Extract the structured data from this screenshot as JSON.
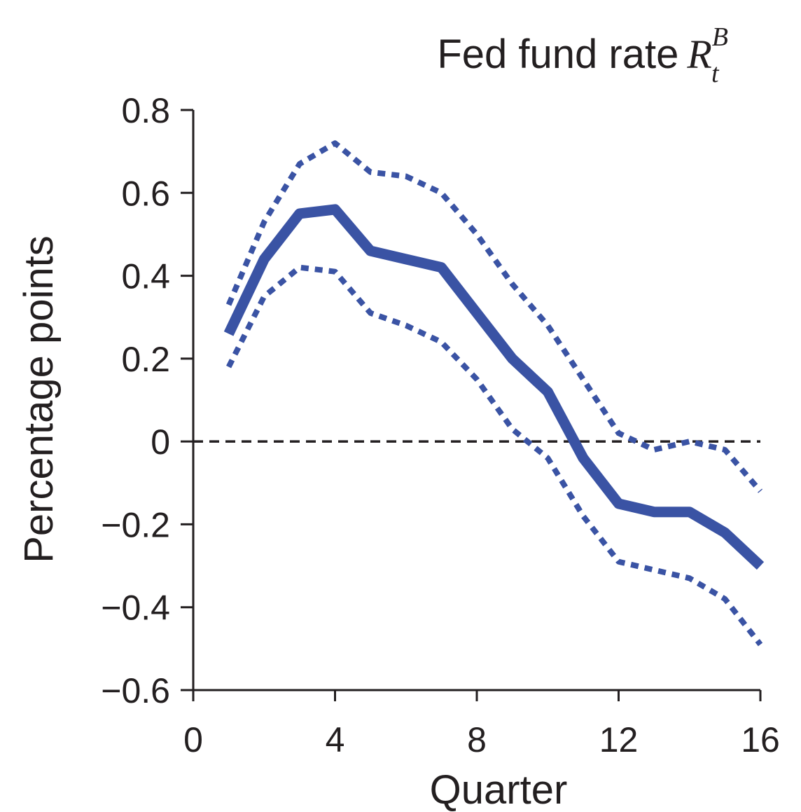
{
  "chart_data": {
    "type": "line",
    "title": "Fed fund rate",
    "title_math": {
      "symbol": "R",
      "superscript": "B",
      "subscript": "t"
    },
    "xlabel": "Quarter",
    "ylabel": "Percentage points",
    "xlim": [
      0,
      16
    ],
    "ylim": [
      -0.6,
      0.8
    ],
    "x_ticks": [
      0,
      4,
      8,
      12,
      16
    ],
    "x_tick_labels": [
      "0",
      "4",
      "8",
      "12",
      "16"
    ],
    "y_ticks": [
      0.8,
      0.6,
      0.4,
      0.2,
      0,
      -0.2,
      -0.4,
      -0.6
    ],
    "y_tick_labels": [
      "0.8",
      "0.6",
      "0.4",
      "0.2",
      "0",
      "−0.2",
      "−0.4",
      "−0.6"
    ],
    "grid": false,
    "reference_line": {
      "y": 0,
      "style": "dashed",
      "color": "#231f20"
    },
    "x": [
      1,
      2,
      3,
      4,
      5,
      6,
      7,
      8,
      9,
      10,
      11,
      12,
      13,
      14,
      15,
      16
    ],
    "series": [
      {
        "role": "estimate",
        "style": "solid",
        "color": "#3a53a4",
        "values": [
          0.26,
          0.44,
          0.55,
          0.56,
          0.46,
          0.44,
          0.42,
          0.31,
          0.2,
          0.12,
          -0.04,
          -0.15,
          -0.17,
          -0.17,
          -0.22,
          -0.3
        ]
      },
      {
        "role": "upper-band",
        "style": "dotted",
        "color": "#3a53a4",
        "values": [
          0.33,
          0.53,
          0.67,
          0.72,
          0.65,
          0.64,
          0.6,
          0.5,
          0.38,
          0.28,
          0.15,
          0.02,
          -0.02,
          0.0,
          -0.02,
          -0.12
        ]
      },
      {
        "role": "lower-band",
        "style": "dotted",
        "color": "#3a53a4",
        "values": [
          0.18,
          0.35,
          0.42,
          0.41,
          0.31,
          0.28,
          0.24,
          0.15,
          0.03,
          -0.04,
          -0.18,
          -0.29,
          -0.31,
          -0.33,
          -0.38,
          -0.49
        ]
      }
    ]
  }
}
